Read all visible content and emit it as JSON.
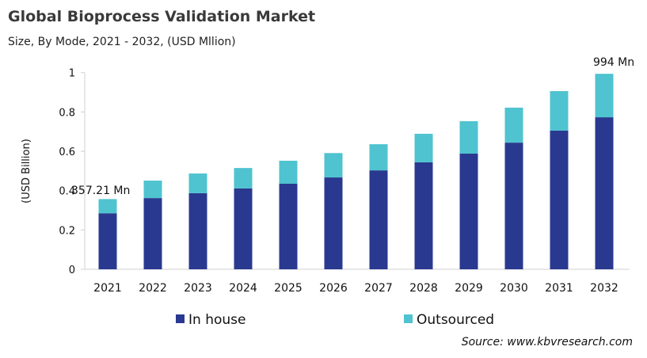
{
  "chart_data": {
    "type": "bar",
    "stacked": true,
    "title": "Global Bioprocess Validation Market",
    "subtitle": "Size, By Mode, 2021 - 2032, (USD Mllion)",
    "xlabel": "",
    "ylabel": "(USD Billion)",
    "ylim": [
      0,
      1
    ],
    "yticks": [
      "0",
      "0.2",
      "0.4",
      "0.6",
      "0.8",
      "1"
    ],
    "grid": false,
    "legend_position": "bottom",
    "categories": [
      "2021",
      "2022",
      "2023",
      "2024",
      "2025",
      "2026",
      "2027",
      "2028",
      "2029",
      "2030",
      "2031",
      "2032"
    ],
    "series": [
      {
        "name": "In house",
        "color": "#2a3990",
        "values": [
          0.285,
          0.362,
          0.387,
          0.411,
          0.435,
          0.467,
          0.503,
          0.544,
          0.588,
          0.644,
          0.705,
          0.773
        ]
      },
      {
        "name": "Outsourced",
        "color": "#4fc3cf",
        "values": [
          0.072,
          0.089,
          0.1,
          0.104,
          0.117,
          0.124,
          0.133,
          0.145,
          0.165,
          0.178,
          0.201,
          0.221
        ]
      }
    ],
    "annotations": [
      {
        "category": "2021",
        "text": "357.21 Mn"
      },
      {
        "category": "2032",
        "text": "994 Mn"
      }
    ]
  },
  "source": "Source: www.kbvresearch.com"
}
